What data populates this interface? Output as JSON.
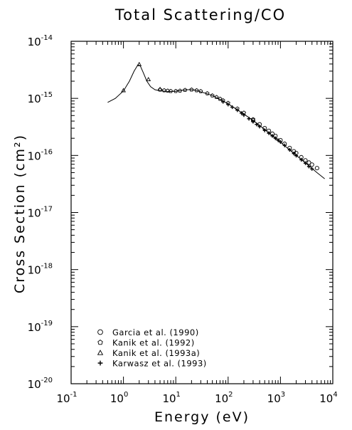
{
  "chart_data": {
    "type": "scatter",
    "title": "Total Scattering/CO",
    "xlabel": "Energy (eV)",
    "ylabel": "Cross Section (cm²)",
    "xscale": "log",
    "yscale": "log",
    "xlim": [
      0.1,
      10000
    ],
    "ylim": [
      1e-20,
      1e-14
    ],
    "x_ticks": [
      {
        "base": "10",
        "exp": "-1",
        "value": 0.1
      },
      {
        "base": "10",
        "exp": "0",
        "value": 1
      },
      {
        "base": "10",
        "exp": "1",
        "value": 10
      },
      {
        "base": "10",
        "exp": "2",
        "value": 100
      },
      {
        "base": "10",
        "exp": "3",
        "value": 1000
      },
      {
        "base": "10",
        "exp": "4",
        "value": 10000
      }
    ],
    "y_ticks": [
      {
        "base": "10",
        "exp": "-20",
        "value": 1e-20
      },
      {
        "base": "10",
        "exp": "-19",
        "value": 1e-19
      },
      {
        "base": "10",
        "exp": "-18",
        "value": 1e-18
      },
      {
        "base": "10",
        "exp": "-17",
        "value": 1e-17
      },
      {
        "base": "10",
        "exp": "-16",
        "value": 1e-16
      },
      {
        "base": "10",
        "exp": "-15",
        "value": 1e-15
      },
      {
        "base": "10",
        "exp": "-14",
        "value": 1e-14
      }
    ],
    "legend_position": "bottom-left",
    "grid": false,
    "fit_curve": {
      "x": [
        0.5,
        0.7,
        1.0,
        1.3,
        1.6,
        1.9,
        2.1,
        2.4,
        2.8,
        3.3,
        4.0,
        5.0,
        6.5,
        8,
        10,
        13,
        17,
        20,
        25,
        30,
        40,
        50,
        70,
        100,
        150,
        200,
        300,
        500,
        700,
        1000,
        1500,
        2000,
        3000,
        5000,
        7000
      ],
      "y": [
        8.5e-16,
        1e-15,
        1.35e-15,
        2e-15,
        3e-15,
        3.9e-15,
        3.7e-15,
        2.8e-15,
        2e-15,
        1.6e-15,
        1.42e-15,
        1.36e-15,
        1.33e-15,
        1.32e-15,
        1.33e-15,
        1.38e-15,
        1.42e-15,
        1.42e-15,
        1.37e-15,
        1.3e-15,
        1.2e-15,
        1.12e-15,
        9.6e-16,
        8e-16,
        6.3e-16,
        5.3e-16,
        4.1e-16,
        2.85e-16,
        2.2e-16,
        1.7e-16,
        1.25e-16,
        1e-16,
        7.4e-17,
        5e-17,
        3.9e-17
      ]
    },
    "series": [
      {
        "name": "Garcia et al. (1990)",
        "marker": "circle",
        "x": [
          300,
          400,
          500,
          600,
          700,
          800,
          1000,
          1200,
          1500,
          1800,
          2000,
          2500,
          3000,
          3500,
          4000,
          5000
        ],
        "y": [
          4.1e-16,
          3.5e-16,
          3e-16,
          2.7e-16,
          2.4e-16,
          2.2e-16,
          1.85e-16,
          1.6e-16,
          1.35e-16,
          1.18e-16,
          1.1e-16,
          9.3e-17,
          8.2e-17,
          7.5e-17,
          6.9e-17,
          6e-17
        ]
      },
      {
        "name": "Kanik et al. (1992)",
        "marker": "pentagon",
        "x": [
          5,
          6,
          7,
          8,
          10,
          12,
          15,
          20,
          25,
          30,
          40,
          50,
          60,
          70,
          80,
          100,
          150,
          200,
          300
        ],
        "y": [
          1.42e-15,
          1.38e-15,
          1.36e-15,
          1.34e-15,
          1.34e-15,
          1.36e-15,
          1.4e-15,
          1.42e-15,
          1.38e-15,
          1.33e-15,
          1.22e-15,
          1.12e-15,
          1.05e-15,
          9.8e-16,
          9.2e-16,
          8.3e-16,
          6.6e-16,
          5.6e-16,
          4.3e-16
        ]
      },
      {
        "name": "Kanik et al. (1993a)",
        "marker": "triangle",
        "x": [
          1.0,
          2.0,
          3.0,
          5.0
        ],
        "y": [
          1.38e-15,
          3.95e-15,
          2.15e-15,
          1.45e-15
        ]
      },
      {
        "name": "Karwasz et al. (1993)",
        "marker": "plus",
        "x": [
          80,
          100,
          120,
          150,
          180,
          200,
          250,
          300,
          350,
          400,
          500,
          600,
          700,
          800,
          900,
          1000,
          1200,
          1500,
          1800,
          2000,
          2500,
          3000,
          3500,
          4000
        ],
        "y": [
          8.7e-16,
          7.8e-16,
          7e-16,
          6.2e-16,
          5.5e-16,
          5.1e-16,
          4.4e-16,
          3.9e-16,
          3.5e-16,
          3.2e-16,
          2.75e-16,
          2.45e-16,
          2.2e-16,
          2e-16,
          1.85e-16,
          1.72e-16,
          1.5e-16,
          1.25e-16,
          1.08e-16,
          9.9e-17,
          8.4e-17,
          7.3e-17,
          6.4e-17,
          5.8e-17
        ]
      }
    ]
  }
}
